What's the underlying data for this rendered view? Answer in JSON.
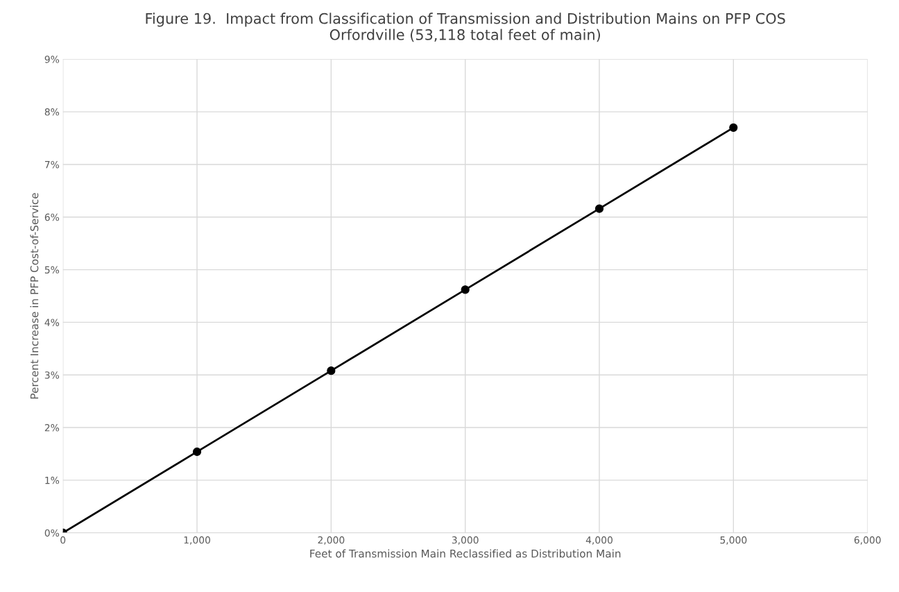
{
  "chart_data": {
    "type": "line",
    "title": "Figure 19.  Impact from Classification of Transmission and Distribution Mains on PFP COS\nOrfordville (53,118 total feet of main)",
    "xlabel": "Feet of Transmission Main Reclassified as Distribution Main",
    "ylabel": "Percent Increase in PFP Cost-of-Service",
    "x": [
      0,
      1000,
      2000,
      3000,
      4000,
      5000
    ],
    "series": [
      {
        "color": "#000000",
        "values": [
          0,
          1.54,
          3.08,
          4.62,
          6.16,
          7.7
        ]
      }
    ],
    "xlim": [
      0,
      6000
    ],
    "xticks": [
      0,
      {
        "value": 1000,
        "label": "1,000"
      },
      {
        "value": 2000,
        "label": "2,000"
      },
      {
        "value": 3000,
        "label": "3,000"
      },
      {
        "value": 4000,
        "label": "4,000"
      },
      {
        "value": 5000,
        "label": "5,000"
      },
      {
        "value": 6000,
        "label": "6,000"
      }
    ],
    "ylim": [
      0,
      9
    ],
    "yticks": [
      {
        "value": 0,
        "label": "0%"
      },
      {
        "value": 1,
        "label": "1%"
      },
      {
        "value": 2,
        "label": "2%"
      },
      {
        "value": 3,
        "label": "3%"
      },
      {
        "value": 4,
        "label": "4%"
      },
      {
        "value": 5,
        "label": "5%"
      },
      {
        "value": 6,
        "label": "6%"
      },
      {
        "value": 7,
        "label": "7%"
      },
      {
        "value": 8,
        "label": "8%"
      },
      {
        "value": 9,
        "label": "9%"
      }
    ],
    "grid": true,
    "marker": "circle",
    "line_style": "solid"
  }
}
